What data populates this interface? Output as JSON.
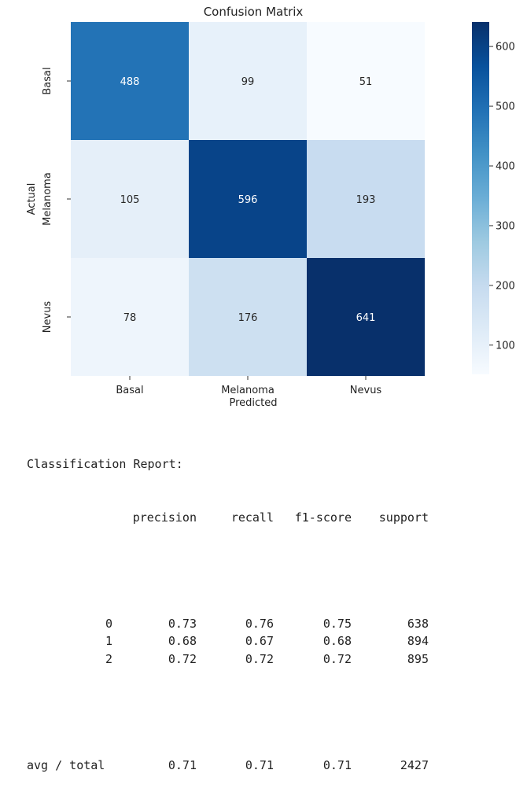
{
  "chart_data": {
    "type": "heatmap",
    "title": "Confusion Matrix",
    "xlabel": "Predicted",
    "ylabel": "Actual",
    "x_categories": [
      "Basal",
      "Melanoma",
      "Nevus"
    ],
    "y_categories": [
      "Basal",
      "Melanoma",
      "Nevus"
    ],
    "values": [
      [
        488,
        99,
        51
      ],
      [
        105,
        596,
        193
      ],
      [
        78,
        176,
        641
      ]
    ],
    "colorscale": "Blues",
    "colorbar": {
      "min": 51,
      "max": 641,
      "ticks": [
        100,
        200,
        300,
        400,
        500,
        600
      ]
    }
  },
  "report": {
    "title": "Classification Report:",
    "headers": [
      "precision",
      "recall",
      "f1-score",
      "support"
    ],
    "rows": [
      {
        "label": "0",
        "values": [
          "0.73",
          "0.76",
          "0.75",
          "638"
        ]
      },
      {
        "label": "1",
        "values": [
          "0.68",
          "0.67",
          "0.68",
          "894"
        ]
      },
      {
        "label": "2",
        "values": [
          "0.72",
          "0.72",
          "0.72",
          "895"
        ]
      }
    ],
    "total": {
      "label": "avg / total",
      "values": [
        "0.71",
        "0.71",
        "0.71",
        "2427"
      ]
    }
  }
}
